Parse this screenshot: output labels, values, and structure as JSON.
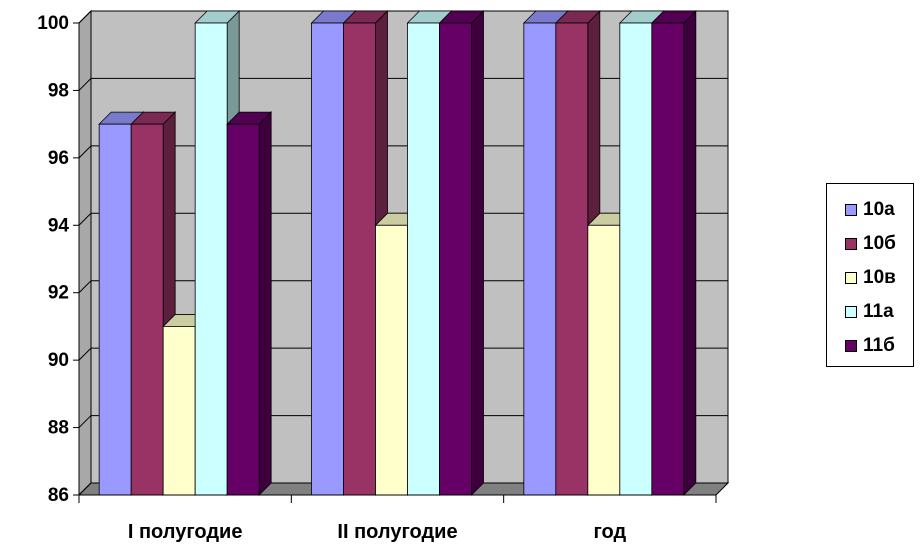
{
  "chart_data": {
    "type": "bar",
    "categories": [
      "I полугодие",
      "II полугодие",
      "год"
    ],
    "series": [
      {
        "name": "10а",
        "values": [
          97,
          100,
          100
        ],
        "color": "#9999ff"
      },
      {
        "name": "10б",
        "values": [
          97,
          100,
          100
        ],
        "color": "#993366"
      },
      {
        "name": "10в",
        "values": [
          91,
          94,
          94
        ],
        "color": "#ffffcc"
      },
      {
        "name": "11а",
        "values": [
          100,
          100,
          100
        ],
        "color": "#ccffff"
      },
      {
        "name": "11б",
        "values": [
          97,
          100,
          100
        ],
        "color": "#660066"
      }
    ],
    "ylim": [
      86,
      100
    ],
    "yticks": [
      "86",
      "88",
      "90",
      "92",
      "94",
      "96",
      "98",
      "100"
    ],
    "grid": true,
    "legend_position": "right",
    "style": "3d-clustered-column",
    "wall_color": "#c0c0c0"
  }
}
